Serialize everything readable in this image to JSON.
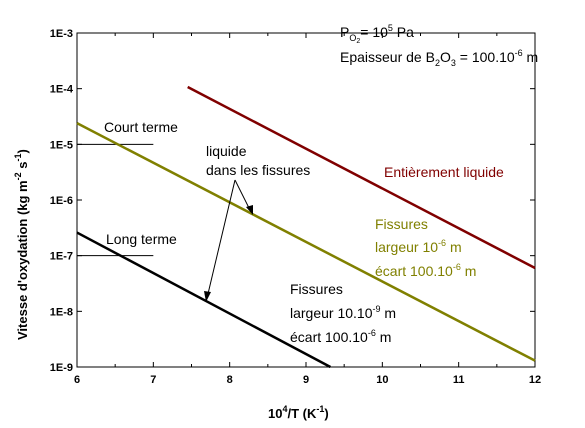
{
  "chart_data": {
    "type": "line",
    "title": "",
    "xlabel": "10⁴/T (K⁻¹)",
    "ylabel": "Vitesse d'oxydation (kg m⁻² s⁻¹)",
    "xlim": [
      6,
      12
    ],
    "ylim": [
      1e-09,
      0.001
    ],
    "y_scale": "log",
    "x_ticks": [
      6,
      7,
      8,
      9,
      10,
      11,
      12
    ],
    "x_tick_labels": [
      "6",
      "7",
      "8",
      "9",
      "10",
      "11",
      "12"
    ],
    "y_ticks": [
      1e-09,
      1e-08,
      1e-07,
      1e-06,
      1e-05,
      0.0001,
      0.001
    ],
    "y_tick_labels": [
      "1E-9",
      "1E-8",
      "1E-7",
      "1E-6",
      "1E-5",
      "1E-4",
      "1E-3"
    ],
    "grid": false,
    "series": [
      {
        "name": "Entièrement liquide",
        "color": "#800000",
        "x": [
          7.45,
          12.0
        ],
        "y": [
          0.000107,
          6e-08
        ]
      },
      {
        "name": "Fissures largeur 10⁻⁶ m écart 100.10⁻⁶ m",
        "color": "#808000",
        "x": [
          6.0,
          12.0
        ],
        "y": [
          2.4e-05,
          1.3e-09
        ]
      },
      {
        "name": "Fissures largeur 10.10⁻⁹ m écart 100.10⁻⁶ m",
        "color": "#000000",
        "x": [
          6.0,
          9.32
        ],
        "y": [
          2.6e-07,
          1e-09
        ]
      }
    ],
    "reference_marks": [
      {
        "label": "Court terme",
        "x": [
          6,
          7
        ],
        "y": 1e-05
      },
      {
        "label": "Long terme",
        "x": [
          6,
          7
        ],
        "y": 1e-07
      }
    ],
    "annotations": {
      "po2_base": "P",
      "po2_sub1": "O",
      "po2_sub2": "2",
      "po2_rest": "= 10",
      "po2_exp": "5",
      "po2_unit": " Pa",
      "epaisseur_base": "Epaisseur de B",
      "epaisseur_sub1": "2",
      "epaisseur_mid": "O",
      "epaisseur_sub2": "3",
      "epaisseur_rest": " = 100.10",
      "epaisseur_exp": "-6",
      "epaisseur_unit": " m",
      "liquide_line1": "liquide",
      "liquide_line2": "dans les fissures",
      "court_terme": "Court terme",
      "long_terme": "Long terme",
      "entierement": "Entièrement liquide",
      "f1_l1": "Fissures",
      "f1_l2_base": "largeur 10",
      "f1_l2_exp": "-6",
      "f1_l2_unit": " m",
      "f1_l3_base": "écart 100.10",
      "f1_l3_exp": "-6",
      "f1_l3_unit": " m",
      "f2_l1": "Fissures",
      "f2_l2_base": "largeur 10.10",
      "f2_l2_exp": "-9",
      "f2_l2_unit": " m",
      "f2_l3_base": "écart 100.10",
      "f2_l3_exp": "-6",
      "f2_l3_unit": " m"
    },
    "axis_title_parts": {
      "x_base": "10",
      "x_exp": "4",
      "x_rest": "/T (K",
      "x_exp2": "-1",
      "x_close": ")",
      "y_base": "Vitesse d'oxydation (kg m",
      "y_exp1": "-2",
      "y_mid": " s",
      "y_exp2": "-1",
      "y_close": ")"
    }
  }
}
